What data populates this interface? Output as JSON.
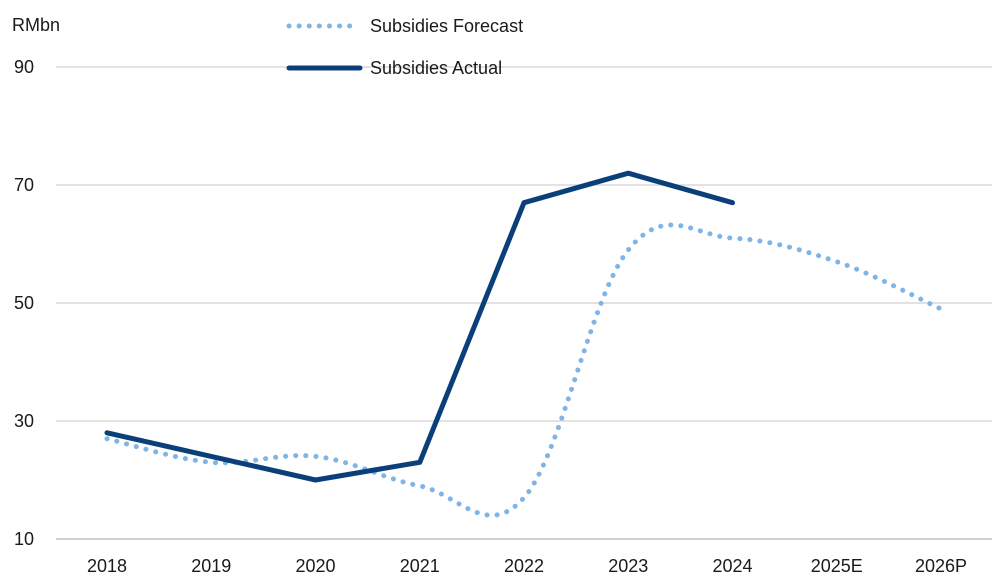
{
  "chart_data": {
    "type": "line",
    "title": "",
    "xlabel": "",
    "ylabel": "RMbn",
    "categories": [
      "2018",
      "2019",
      "2020",
      "2021",
      "2022",
      "2023",
      "2024",
      "2025E",
      "2026P"
    ],
    "ylim": [
      10,
      90
    ],
    "yticks": [
      10,
      30,
      50,
      70,
      90
    ],
    "grid": true,
    "legend_position": "top-center",
    "series": [
      {
        "name": "Subsidies Forecast",
        "style": "dotted",
        "color": "#7fb5e6",
        "values": [
          27,
          23,
          24,
          19,
          17,
          59,
          61,
          57,
          49
        ]
      },
      {
        "name": "Subsidies Actual",
        "style": "solid",
        "color": "#0b3f7a",
        "values": [
          28,
          24,
          20,
          23,
          67,
          72,
          67,
          null,
          null
        ]
      }
    ]
  }
}
